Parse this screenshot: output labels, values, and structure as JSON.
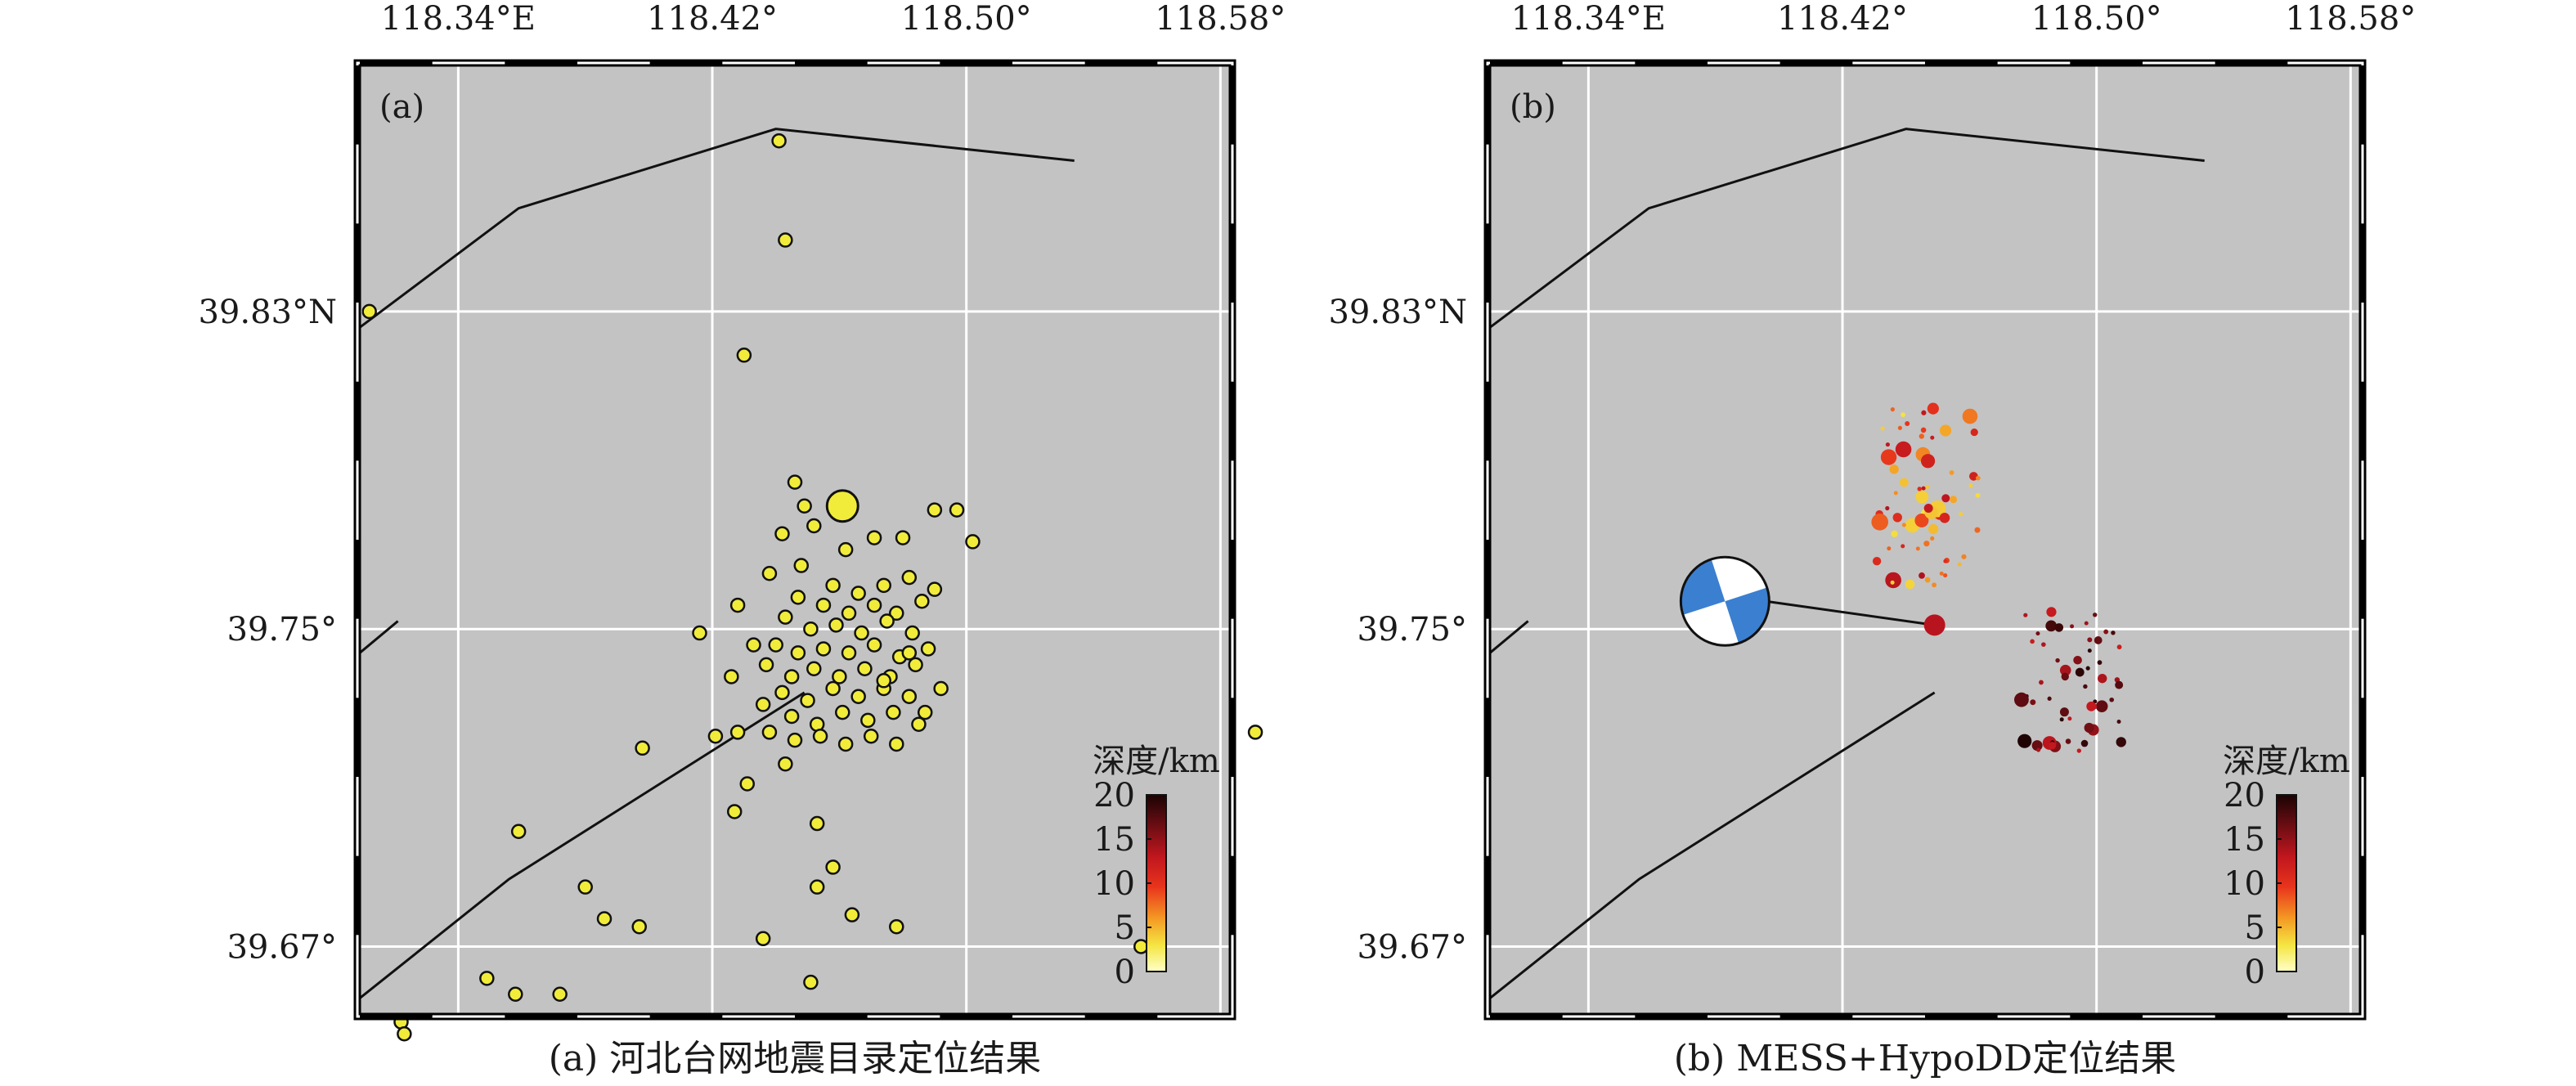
{
  "panels": [
    {
      "id": "a",
      "label": "(a)",
      "caption": "(a) 河北台网地震目录定位结果",
      "lon_labels": [
        "118.34°E",
        "118.42°",
        "118.50°",
        "118.58°"
      ],
      "lat_labels": [
        "39.83°N",
        "39.75°",
        "39.67°"
      ],
      "colorbar": {
        "title": "深度/km",
        "ticks": [
          "20",
          "15",
          "10",
          "5",
          "0"
        ]
      },
      "event_color": "#f1ec3a",
      "events": [
        [
          118.312,
          39.83
        ],
        [
          118.441,
          39.873
        ],
        [
          118.443,
          39.848
        ],
        [
          118.43,
          39.819
        ],
        [
          118.446,
          39.787
        ],
        [
          118.449,
          39.781
        ],
        [
          118.442,
          39.774
        ],
        [
          118.452,
          39.776
        ],
        [
          118.462,
          39.77
        ],
        [
          118.471,
          39.773
        ],
        [
          118.48,
          39.773
        ],
        [
          118.438,
          39.764
        ],
        [
          118.448,
          39.766
        ],
        [
          118.458,
          39.761
        ],
        [
          118.466,
          39.759
        ],
        [
          118.474,
          39.761
        ],
        [
          118.482,
          39.763
        ],
        [
          118.49,
          39.76
        ],
        [
          118.447,
          39.758
        ],
        [
          118.455,
          39.756
        ],
        [
          118.463,
          39.754
        ],
        [
          118.471,
          39.756
        ],
        [
          118.478,
          39.754
        ],
        [
          118.486,
          39.757
        ],
        [
          118.443,
          39.753
        ],
        [
          118.451,
          39.75
        ],
        [
          118.459,
          39.751
        ],
        [
          118.467,
          39.749
        ],
        [
          118.475,
          39.752
        ],
        [
          118.483,
          39.749
        ],
        [
          118.44,
          39.746
        ],
        [
          118.447,
          39.744
        ],
        [
          118.455,
          39.745
        ],
        [
          118.463,
          39.744
        ],
        [
          118.471,
          39.746
        ],
        [
          118.479,
          39.743
        ],
        [
          118.488,
          39.745
        ],
        [
          118.437,
          39.741
        ],
        [
          118.445,
          39.738
        ],
        [
          118.452,
          39.74
        ],
        [
          118.46,
          39.738
        ],
        [
          118.468,
          39.74
        ],
        [
          118.476,
          39.738
        ],
        [
          118.484,
          39.741
        ],
        [
          118.442,
          39.734
        ],
        [
          118.45,
          39.732
        ],
        [
          118.458,
          39.735
        ],
        [
          118.466,
          39.733
        ],
        [
          118.474,
          39.735
        ],
        [
          118.482,
          39.733
        ],
        [
          118.445,
          39.728
        ],
        [
          118.453,
          39.726
        ],
        [
          118.461,
          39.729
        ],
        [
          118.469,
          39.727
        ],
        [
          118.477,
          39.729
        ],
        [
          118.485,
          39.726
        ],
        [
          118.438,
          39.724
        ],
        [
          118.446,
          39.722
        ],
        [
          118.454,
          39.723
        ],
        [
          118.462,
          39.721
        ],
        [
          118.47,
          39.723
        ],
        [
          118.478,
          39.721
        ],
        [
          118.487,
          39.729
        ],
        [
          118.492,
          39.735
        ],
        [
          118.426,
          39.738
        ],
        [
          118.433,
          39.746
        ],
        [
          118.428,
          39.756
        ],
        [
          118.416,
          39.749
        ],
        [
          118.421,
          39.723
        ],
        [
          118.428,
          39.724
        ],
        [
          118.398,
          39.72
        ],
        [
          118.436,
          39.731
        ],
        [
          118.443,
          39.716
        ],
        [
          118.431,
          39.711
        ],
        [
          118.427,
          39.704
        ],
        [
          118.453,
          39.701
        ],
        [
          118.458,
          39.69
        ],
        [
          118.453,
          39.685
        ],
        [
          118.464,
          39.678
        ],
        [
          118.436,
          39.672
        ],
        [
          118.478,
          39.675
        ],
        [
          118.451,
          39.661
        ],
        [
          118.359,
          39.699
        ],
        [
          118.386,
          39.677
        ],
        [
          118.38,
          39.685
        ],
        [
          118.397,
          39.675
        ],
        [
          118.358,
          39.658
        ],
        [
          118.349,
          39.662
        ],
        [
          118.372,
          39.658
        ],
        [
          118.322,
          39.651
        ],
        [
          118.323,
          39.648
        ],
        [
          118.555,
          39.67
        ],
        [
          118.591,
          39.724
        ],
        [
          118.49,
          39.78
        ],
        [
          118.497,
          39.78
        ],
        [
          118.502,
          39.772
        ],
        [
          118.482,
          39.744
        ],
        [
          118.474,
          39.737
        ]
      ],
      "mainshock": [
        118.461,
        39.781
      ]
    },
    {
      "id": "b",
      "label": "(b)",
      "caption": "(b) MESS+HypoDD定位结果",
      "lon_labels": [
        "118.34°E",
        "118.42°",
        "118.50°",
        "118.58°"
      ],
      "lat_labels": [
        "39.83°N",
        "39.75°",
        "39.67°"
      ],
      "colorbar": {
        "title": "深度/km",
        "ticks": [
          "20",
          "15",
          "10",
          "5",
          "0"
        ]
      },
      "mainshock": [
        118.449,
        39.751
      ],
      "beachball_label_anchor": [
        118.383,
        39.757
      ],
      "clusters": [
        {
          "lon0": 118.43,
          "lon1": 118.464,
          "lat0": 39.76,
          "lat1": 39.806,
          "dmin": 3,
          "dmax": 14,
          "count": 70,
          "seed": 7
        },
        {
          "lon0": 118.476,
          "lon1": 118.508,
          "lat0": 39.718,
          "lat1": 39.755,
          "dmin": 12,
          "dmax": 20,
          "count": 55,
          "seed": 11
        }
      ]
    }
  ],
  "colors": {
    "map_bg": "#c3c3c3",
    "grid": "#ffffff",
    "frame": "#000000",
    "mainshock_b": "#b8141f"
  },
  "map_extent": {
    "lon_min": 118.309,
    "lon_max": 118.583,
    "lat_min": 39.653,
    "lat_max": 39.892
  },
  "faults": [
    [
      [
        118.309,
        39.826
      ],
      [
        118.359,
        39.856
      ],
      [
        118.44,
        39.876
      ],
      [
        118.534,
        39.868
      ]
    ],
    [
      [
        118.309,
        39.744
      ],
      [
        118.321,
        39.752
      ]
    ],
    [
      [
        118.309,
        39.657
      ],
      [
        118.356,
        39.687
      ],
      [
        118.449,
        39.734
      ]
    ]
  ]
}
